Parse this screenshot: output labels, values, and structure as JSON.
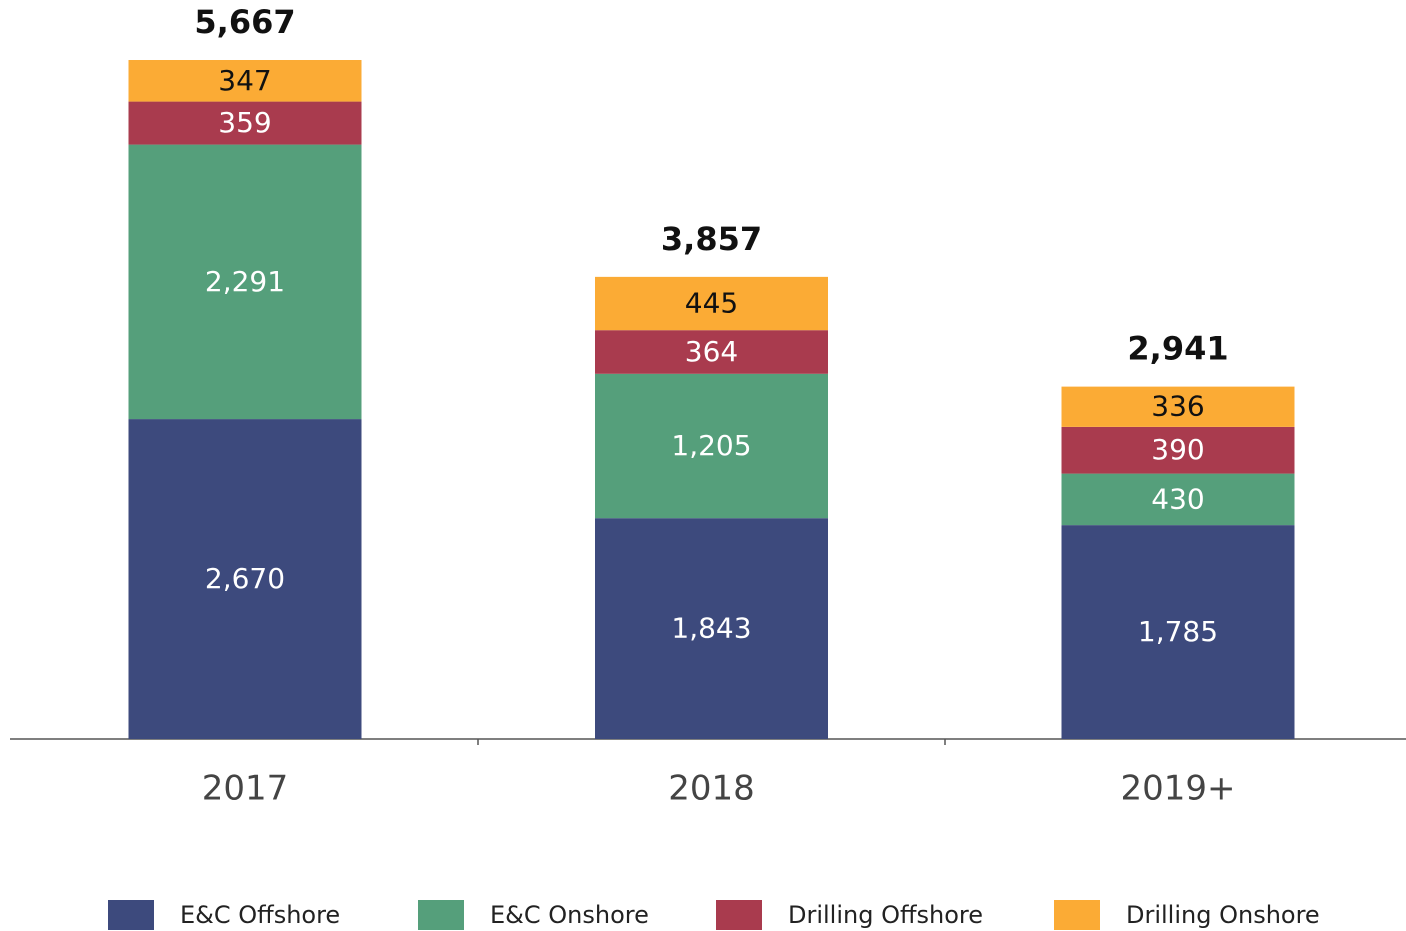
{
  "chart_data": {
    "type": "stacked_bar",
    "categories": [
      "2017",
      "2018",
      "2019+"
    ],
    "series": [
      {
        "name": "E&C Offshore",
        "color": "#3d4a7d",
        "label_color": "#ffffff",
        "values": [
          2670,
          1843,
          1785
        ],
        "value_labels": [
          "2,670",
          "1,843",
          "1,785"
        ]
      },
      {
        "name": "E&C Onshore",
        "color": "#559f7b",
        "label_color": "#ffffff",
        "values": [
          2291,
          1205,
          430
        ],
        "value_labels": [
          "2,291",
          "1,205",
          "430"
        ]
      },
      {
        "name": "Drilling Offshore",
        "color": "#a93b4e",
        "label_color": "#ffffff",
        "values": [
          359,
          364,
          390
        ],
        "value_labels": [
          "359",
          "364",
          "390"
        ]
      },
      {
        "name": "Drilling Onshore",
        "color": "#fbab35",
        "label_color": "#111111",
        "values": [
          347,
          445,
          336
        ],
        "value_labels": [
          "347",
          "445",
          "336"
        ]
      }
    ],
    "totals": [
      5667,
      3857,
      2941
    ],
    "total_labels": [
      "5,667",
      "3,857",
      "2,941"
    ]
  }
}
